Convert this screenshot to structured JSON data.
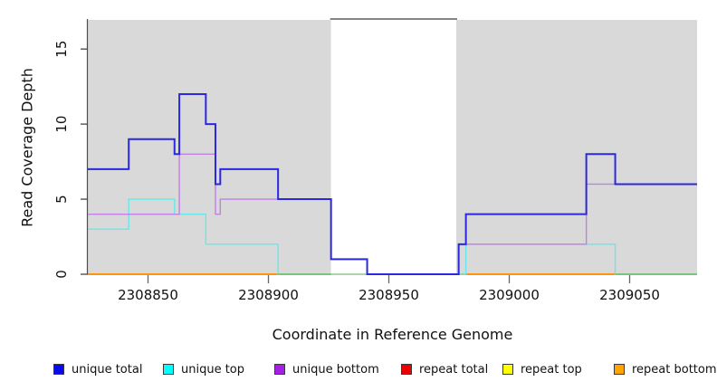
{
  "chart_data": {
    "type": "line",
    "subtype": "step-coverage",
    "title": "",
    "xlabel": "Coordinate in Reference Genome",
    "ylabel": "Read Coverage Depth",
    "xlim": [
      2308825,
      2309078
    ],
    "ylim": [
      0,
      17
    ],
    "x_ticks": [
      2308850,
      2308900,
      2308950,
      2309000,
      2309050
    ],
    "y_ticks": [
      0,
      5,
      10,
      15
    ],
    "grid": false,
    "legend_position": "bottom",
    "background": {
      "band_color": "#d9d9d9",
      "shaded_bands": [
        {
          "x0": 2308825,
          "x1": 2308926
        },
        {
          "x0": 2308978,
          "x1": 2309078
        }
      ],
      "masked_gap": {
        "x0": 2308926,
        "x1": 2308978,
        "fill": "#ffffff",
        "top_border_color": "#858585"
      }
    },
    "series": [
      {
        "id": "repeat_top",
        "name": "repeat top",
        "legend_color": "#ffff00",
        "line_color": "#ffff00",
        "line_width": 1.3,
        "steps": [
          [
            2308825,
            0
          ]
        ],
        "end": 2309078
      },
      {
        "id": "repeat_total",
        "name": "repeat total",
        "legend_color": "#ee0000",
        "line_color": "#e00000",
        "line_width": 1.3,
        "steps": [
          [
            2308825,
            0
          ]
        ],
        "end": 2309078
      },
      {
        "id": "repeat_bottom",
        "name": "repeat bottom",
        "legend_color": "#ffa500",
        "line_color": "#ff9000",
        "line_width": 1.8,
        "steps": [
          [
            2308825,
            0
          ]
        ],
        "end": 2309078
      },
      {
        "id": "unique_top",
        "name": "unique top",
        "legend_color": "#00ffff",
        "line_color": "#68e8e8",
        "line_width": 1.4,
        "steps": [
          [
            2308825,
            3
          ],
          [
            2308842,
            5
          ],
          [
            2308861,
            4
          ],
          [
            2308874,
            2
          ],
          [
            2308904,
            0
          ],
          [
            2308982,
            2
          ],
          [
            2309044,
            0
          ]
        ],
        "end": 2309078
      },
      {
        "id": "unique_bottom",
        "name": "unique bottom",
        "legend_color": "#a61ee8",
        "line_color": "#c080e6",
        "line_width": 1.4,
        "steps": [
          [
            2308825,
            4
          ],
          [
            2308863,
            8
          ],
          [
            2308878,
            4
          ],
          [
            2308880,
            5
          ],
          [
            2308926,
            1
          ],
          [
            2308941,
            0
          ],
          [
            2308979,
            2
          ],
          [
            2309032,
            6
          ]
        ],
        "end": 2309078
      },
      {
        "id": "unique_total",
        "name": "unique total",
        "legend_color": "#0909f0",
        "line_color": "#2b28e0",
        "line_width": 2,
        "steps": [
          [
            2308825,
            7
          ],
          [
            2308842,
            9
          ],
          [
            2308861,
            8
          ],
          [
            2308863,
            12
          ],
          [
            2308874,
            10
          ],
          [
            2308878,
            6
          ],
          [
            2308880,
            7
          ],
          [
            2308904,
            5
          ],
          [
            2308926,
            1
          ],
          [
            2308941,
            0
          ],
          [
            2308979,
            2
          ],
          [
            2308982,
            4
          ],
          [
            2309032,
            8
          ],
          [
            2309044,
            6
          ]
        ],
        "end": 2309078
      }
    ],
    "zero_line_blend_segments": [
      {
        "x0": 2308904,
        "x1": 2308926,
        "color": "#72c57b"
      },
      {
        "x0": 2308926,
        "x1": 2308941,
        "color": "#aad9ad"
      },
      {
        "x0": 2309044,
        "x1": 2309078,
        "color": "#72c57b"
      }
    ],
    "legend_order": [
      "unique_total",
      "unique_top",
      "unique_bottom",
      "repeat_total",
      "repeat_top",
      "repeat_bottom"
    ]
  }
}
